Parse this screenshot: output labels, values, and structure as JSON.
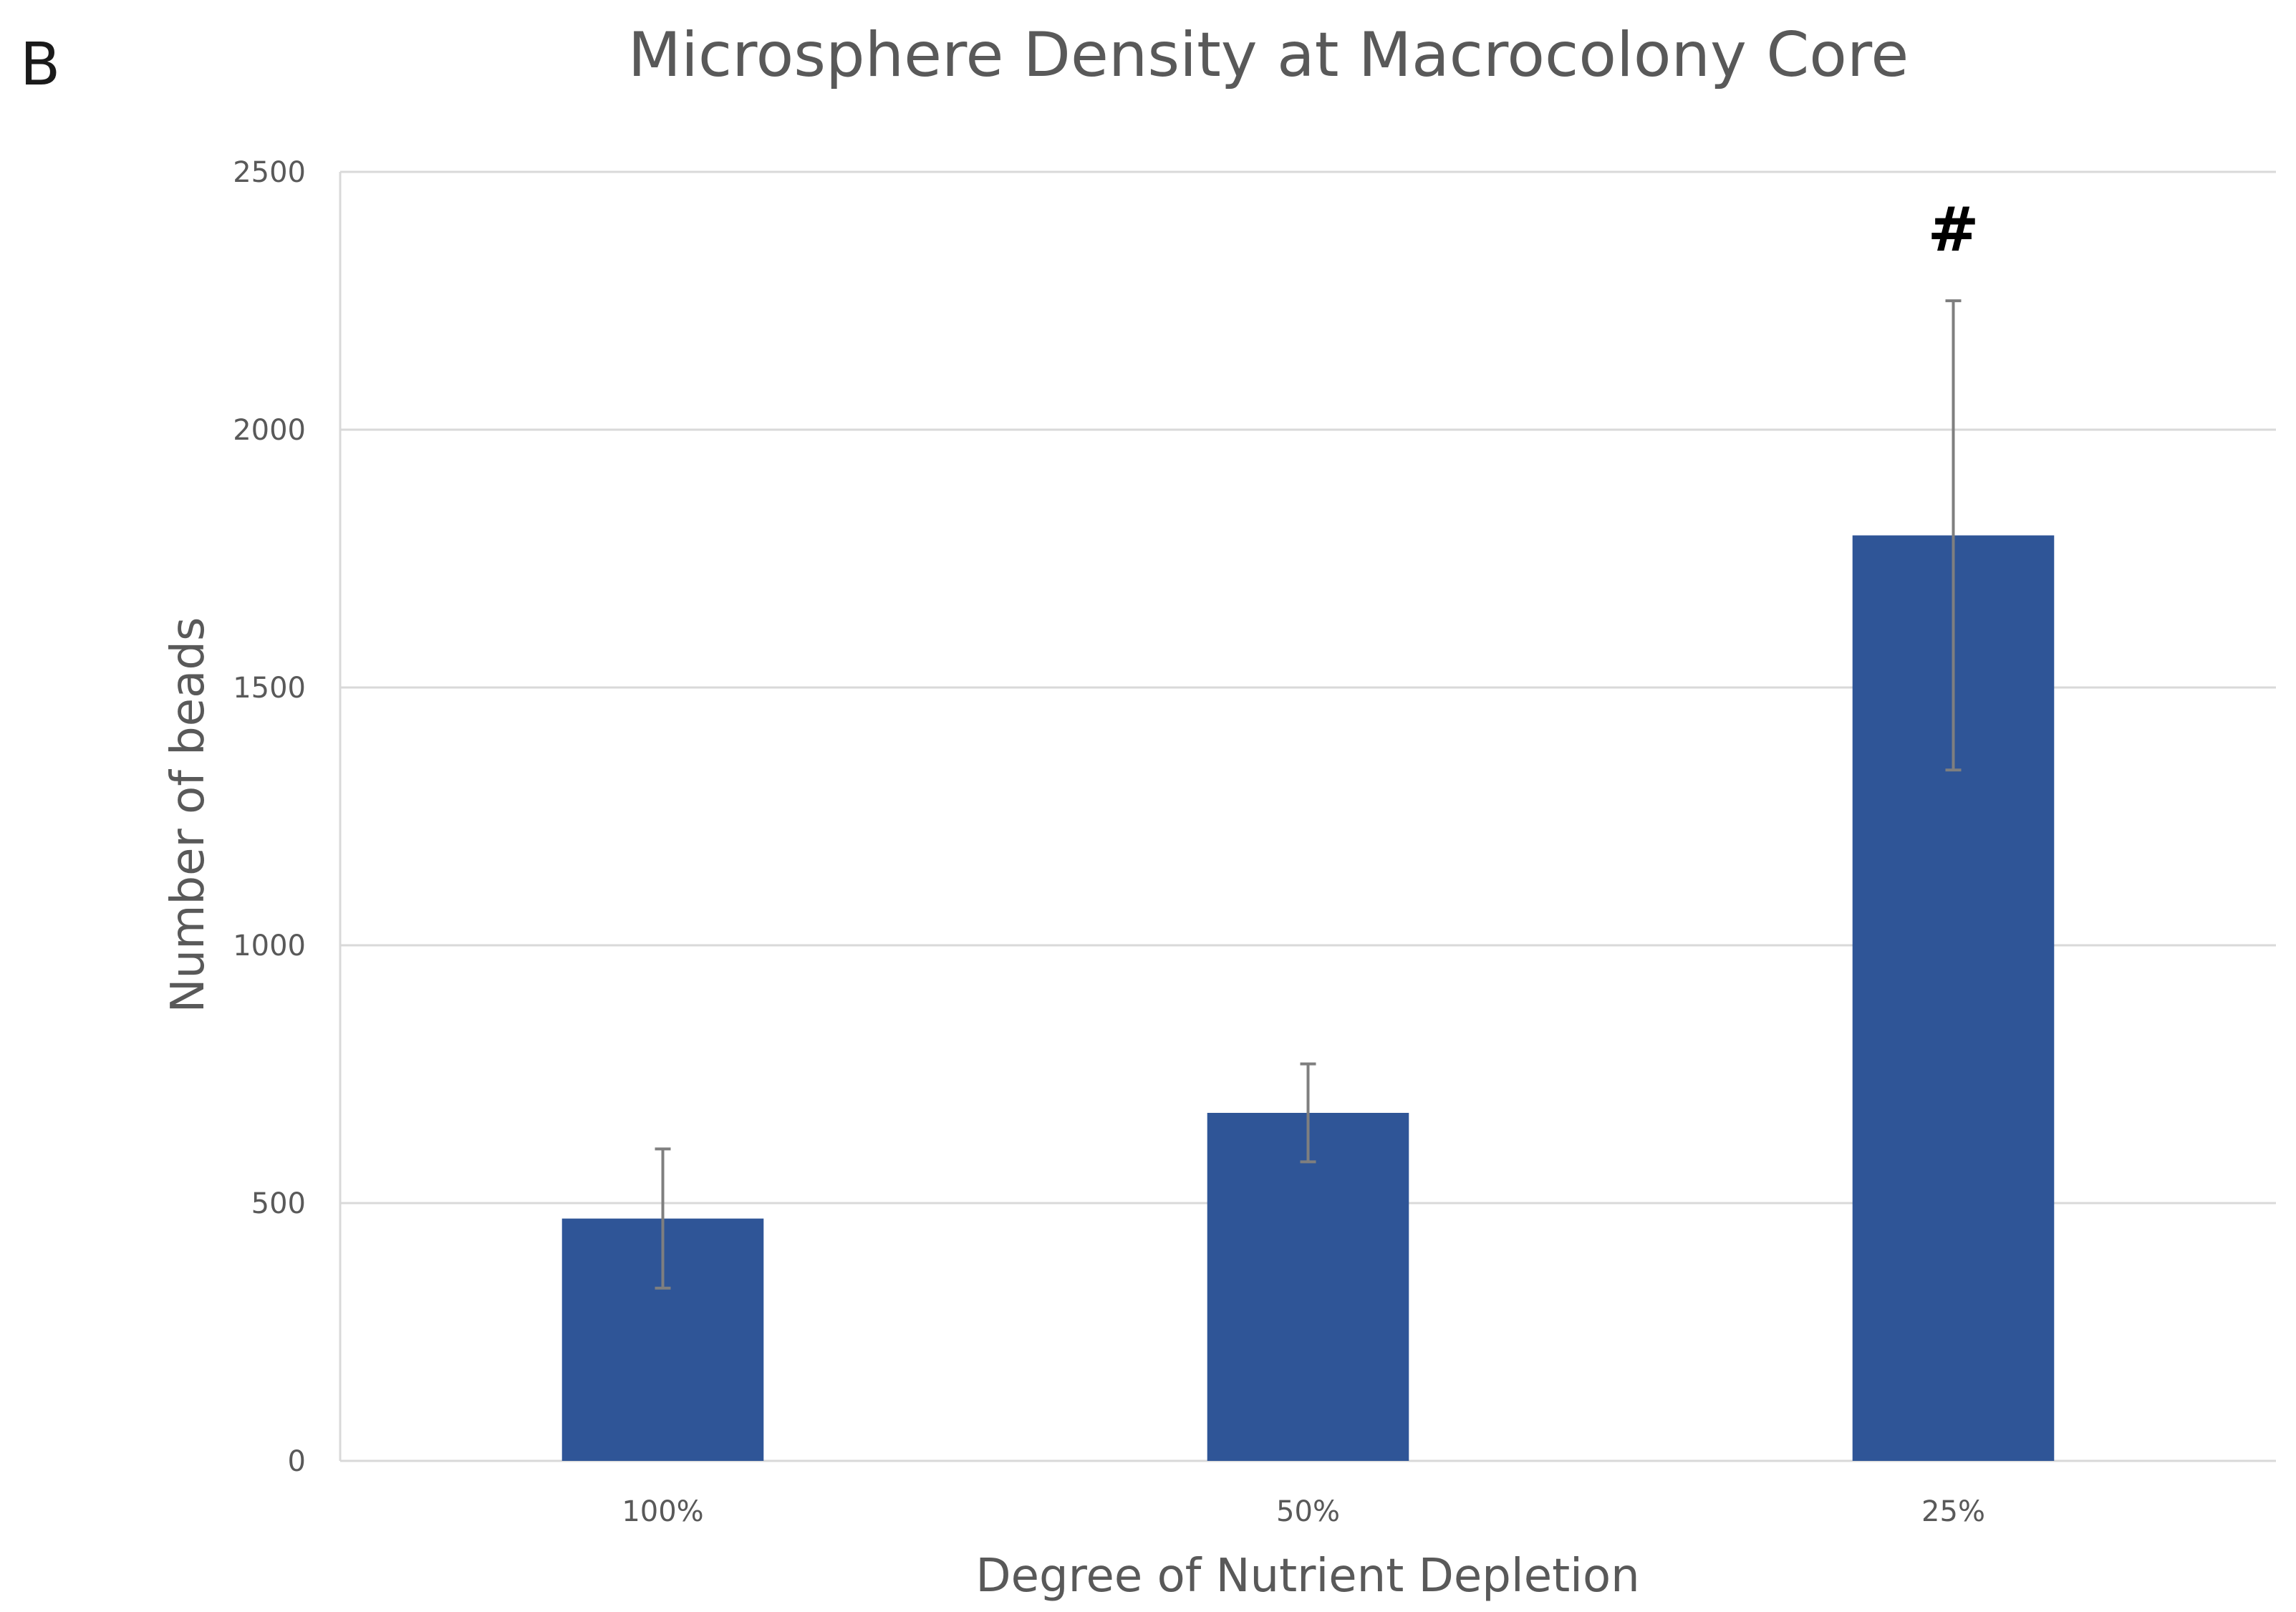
{
  "panel_label": "B",
  "chart_data": {
    "type": "bar",
    "title": "Microsphere Density at Macrocolony Core",
    "xlabel": "Degree of Nutrient Depletion",
    "ylabel": "Number of beads",
    "categories": [
      "100%",
      "50%",
      "25%"
    ],
    "values": [
      470,
      675,
      1795
    ],
    "error_plus": [
      135,
      95,
      455
    ],
    "error_minus": [
      135,
      95,
      455
    ],
    "ylim": [
      0,
      2500
    ],
    "yticks": [
      0,
      500,
      1000,
      1500,
      2000,
      2500
    ],
    "grid": true,
    "bar_color": "#2f5597",
    "annotations": [
      {
        "category": "25%",
        "text": "#"
      }
    ]
  }
}
